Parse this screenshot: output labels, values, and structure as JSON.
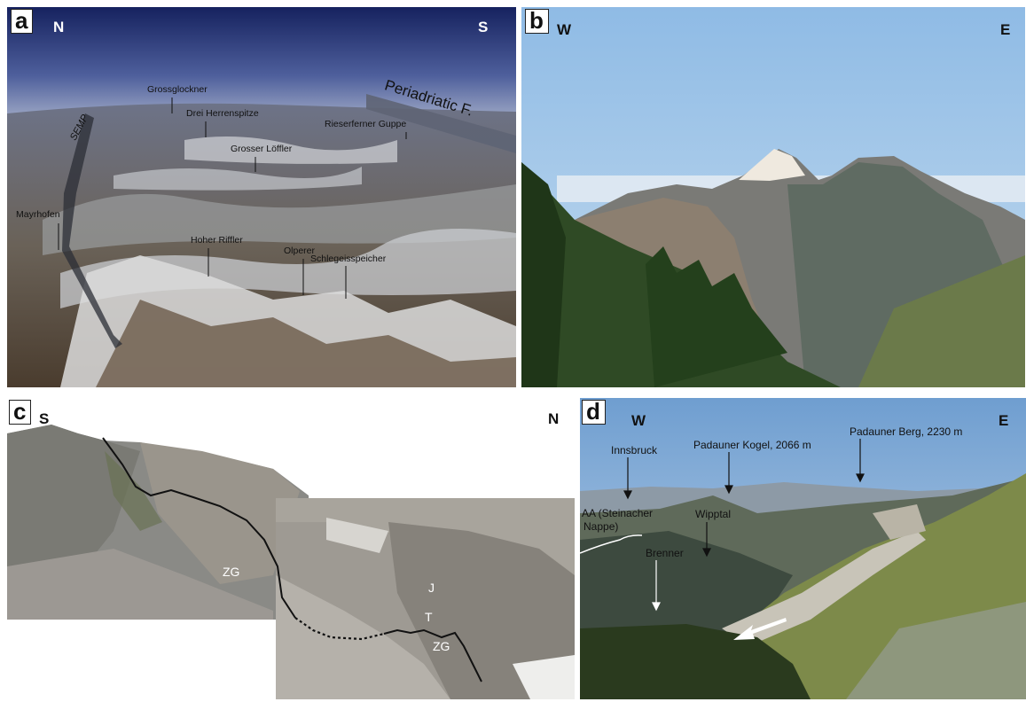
{
  "panels": {
    "a": {
      "letter": "a",
      "left": "N",
      "right": "S",
      "labels": {
        "grossglockner": "Grossglockner",
        "drei": "Drei Herrenspitze",
        "loeffler": "Grosser Löffler",
        "rieserferner": "Rieserferner Guppe",
        "mayrhofen": "Mayrhofen",
        "riffler": "Hoher Riffler",
        "olperer": "Olperer",
        "schlegeis": "Schlegeisspeicher",
        "semp": "SEMP",
        "periadriatic": "Periadriatic F."
      }
    },
    "b": {
      "letter": "b",
      "left": "W",
      "right": "E"
    },
    "c": {
      "letter": "c",
      "left": "S",
      "right": "N",
      "labels": {
        "zg1": "ZG",
        "zg2": "ZG",
        "j": "J",
        "t": "T"
      }
    },
    "d": {
      "letter": "d",
      "left": "W",
      "right": "E",
      "labels": {
        "innsbruck": "Innsbruck",
        "kogel": "Padauner Kogel, 2066 m",
        "berg": "Padauner Berg, 2230 m",
        "aa": "AA (Steinacher",
        "nappe": "Nappe)",
        "wipptal": "Wipptal",
        "brenner": "Brenner"
      }
    }
  },
  "colors": {
    "sky_a_top": "#1c2a6e",
    "sky_a_bottom": "#aab3c9",
    "sky_b": "#a9cbea",
    "forest": "#2e4a24",
    "rock": "#8c8a86",
    "snow": "#f2f2f0"
  }
}
